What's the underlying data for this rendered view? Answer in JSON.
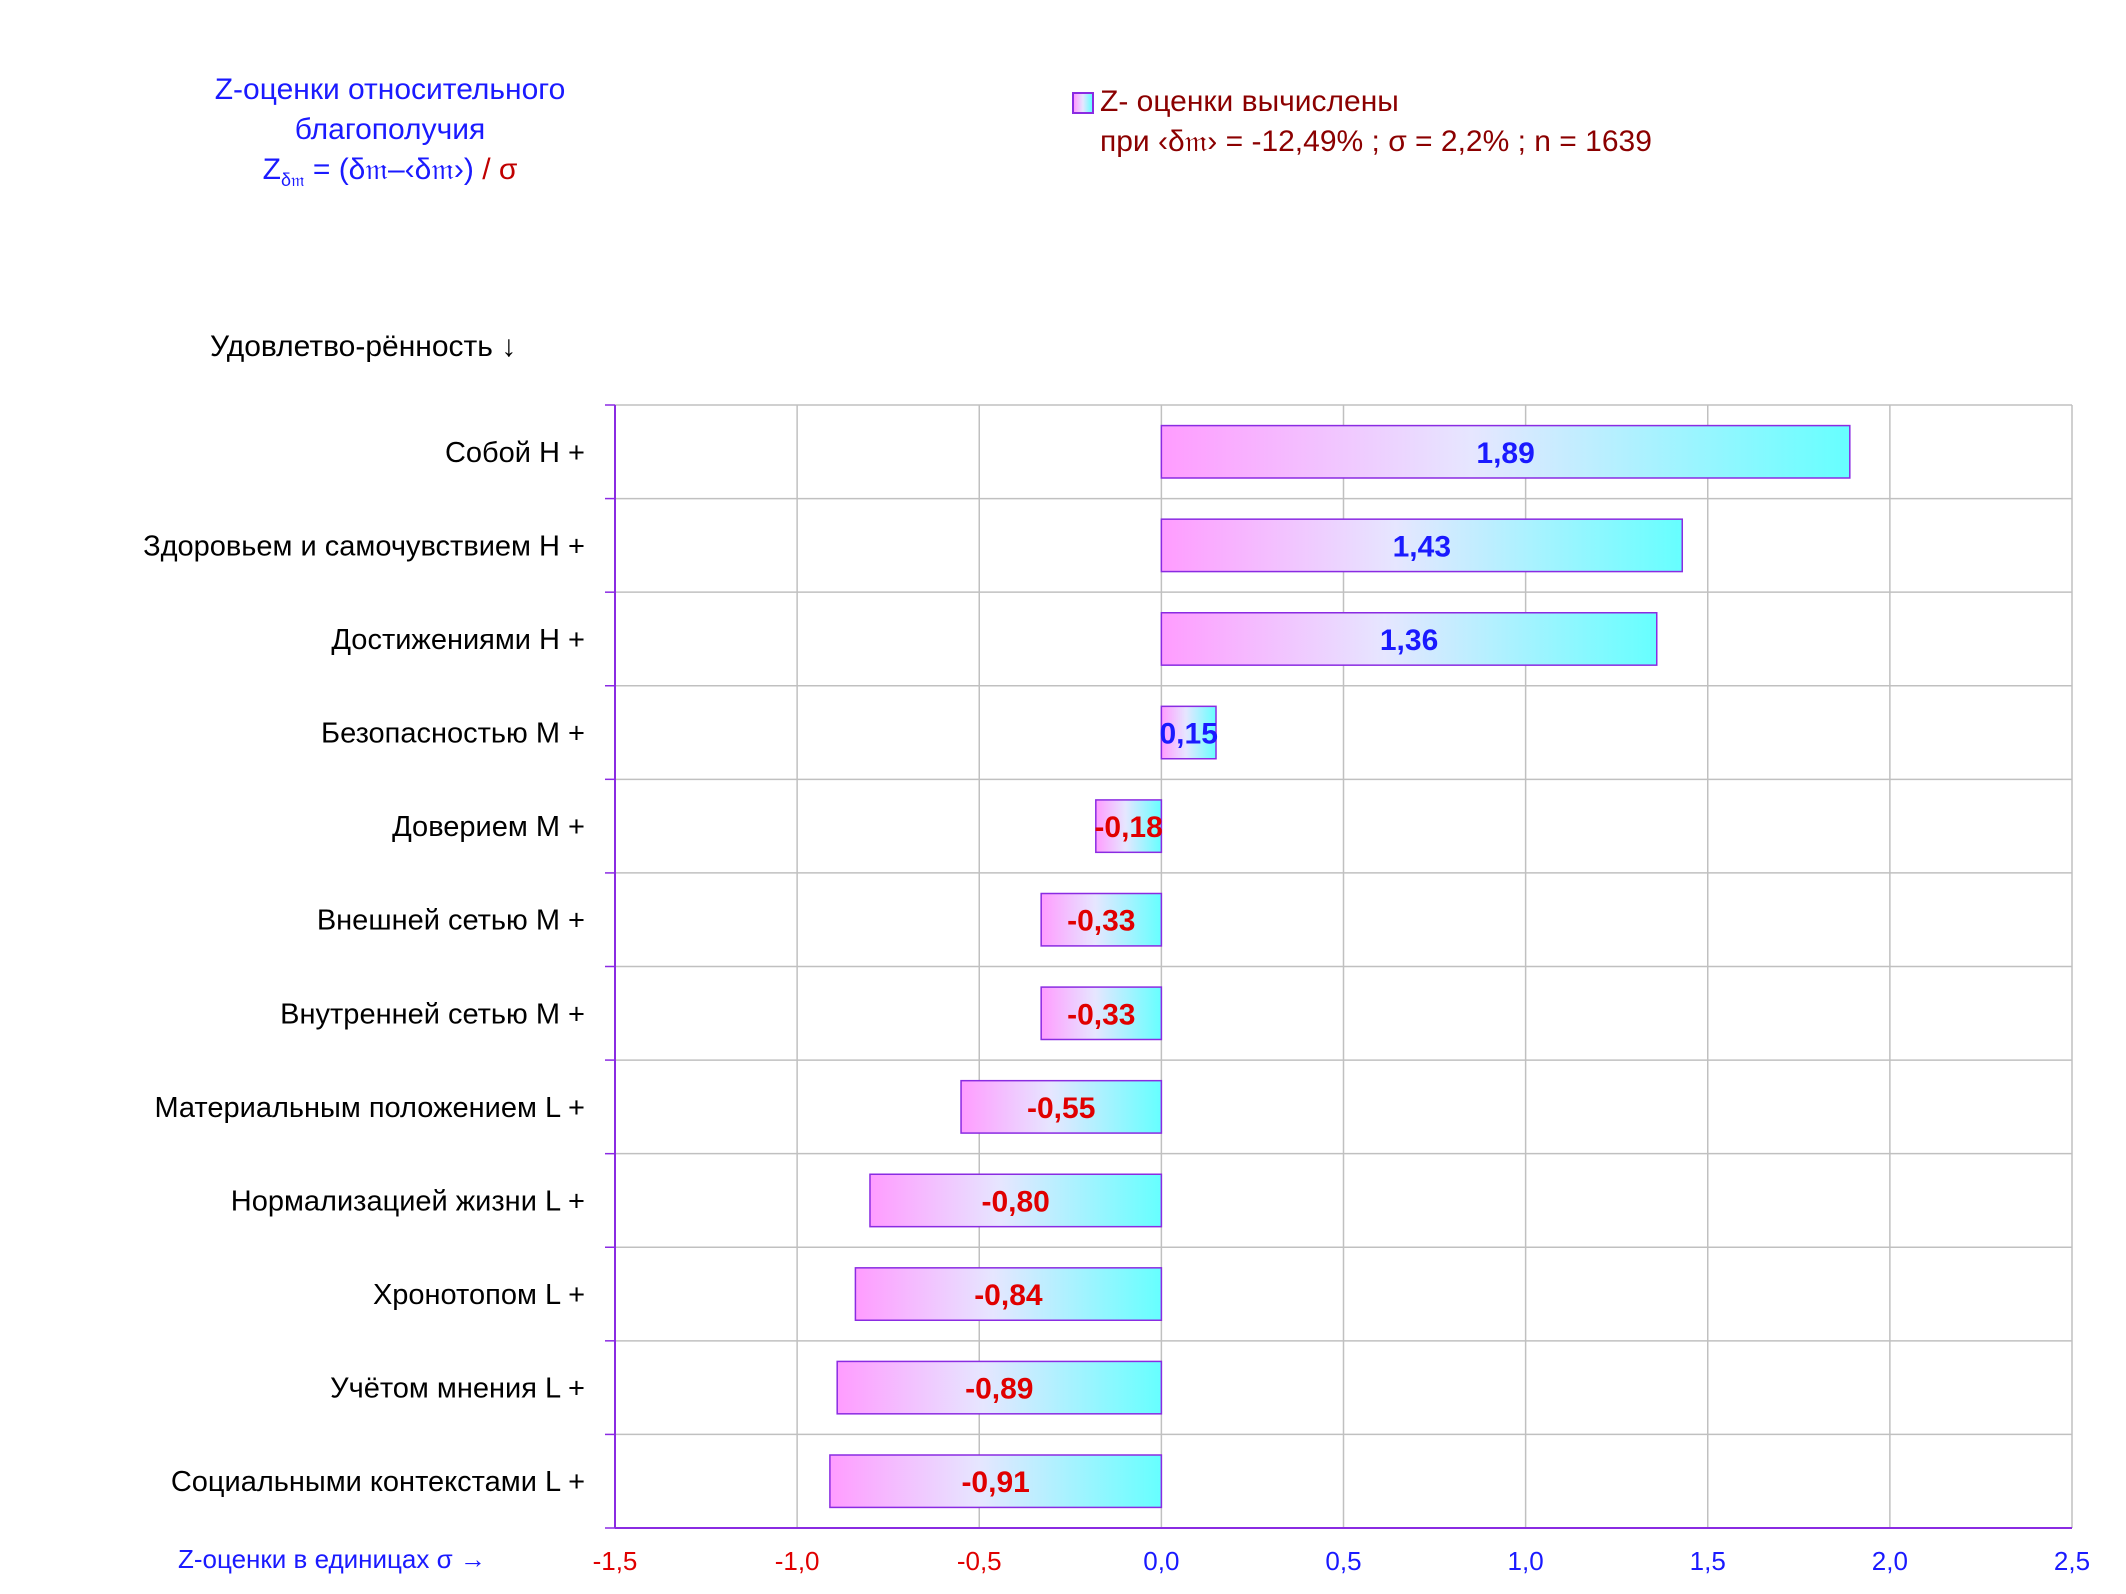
{
  "header": {
    "title_line1": "Z-оценки  относительного",
    "title_line2": "благополучия",
    "formula_z": "Z",
    "formula_sub": "δ𝔪",
    "formula_rest": " = (δ𝔪–‹δ𝔪›) ",
    "formula_tail": "/ σ"
  },
  "legend": {
    "line1": "Z- оценки вычислены",
    "line2": "при ‹δ𝔪› = -12,49% ; σ = 2,2% ; n = 1639"
  },
  "axis": {
    "y_heading": "Удовлетво-рённость ↓",
    "x_heading": "Z-оценки в единицах σ →"
  },
  "colors": {
    "positive_label": "#1a1aff",
    "negative_label": "#e00000",
    "grid": "#c0c0c0",
    "axis": "#8a2be2",
    "bar_left": "#ff9cff",
    "bar_mid": "#e6e6ff",
    "bar_right": "#66ffff"
  },
  "chart_data": {
    "type": "bar",
    "orientation": "horizontal",
    "categories": [
      "Собой  H +",
      "Здоровьем и самочувствием  H +",
      "Достижениями  H +",
      "Безопасностью  M +",
      "Доверием  M +",
      "Внешней сетью  M +",
      "Внутренней сетью  M +",
      "Материальным положением  L +",
      "Нормализацией жизни  L +",
      "Хронотопом  L +",
      "Учётом мнения  L +",
      "Социальными контекстами  L +"
    ],
    "values": [
      1.89,
      1.43,
      1.36,
      0.15,
      -0.18,
      -0.33,
      -0.33,
      -0.55,
      -0.8,
      -0.84,
      -0.89,
      -0.91
    ],
    "value_labels": [
      "1,89",
      "1,43",
      "1,36",
      "0,15",
      "-0,18",
      "-0,33",
      "-0,33",
      "-0,55",
      "-0,80",
      "-0,84",
      "-0,89",
      "-0,91"
    ],
    "xlim": [
      -1.5,
      2.5
    ],
    "xticks": [
      -1.5,
      -1.0,
      -0.5,
      0.0,
      0.5,
      1.0,
      1.5,
      2.0,
      2.5
    ],
    "xtick_labels": [
      "-1,5",
      "-1,0",
      "-0,5",
      "0,0",
      "0,5",
      "1,0",
      "1,5",
      "2,0",
      "2,5"
    ],
    "grid": true
  }
}
